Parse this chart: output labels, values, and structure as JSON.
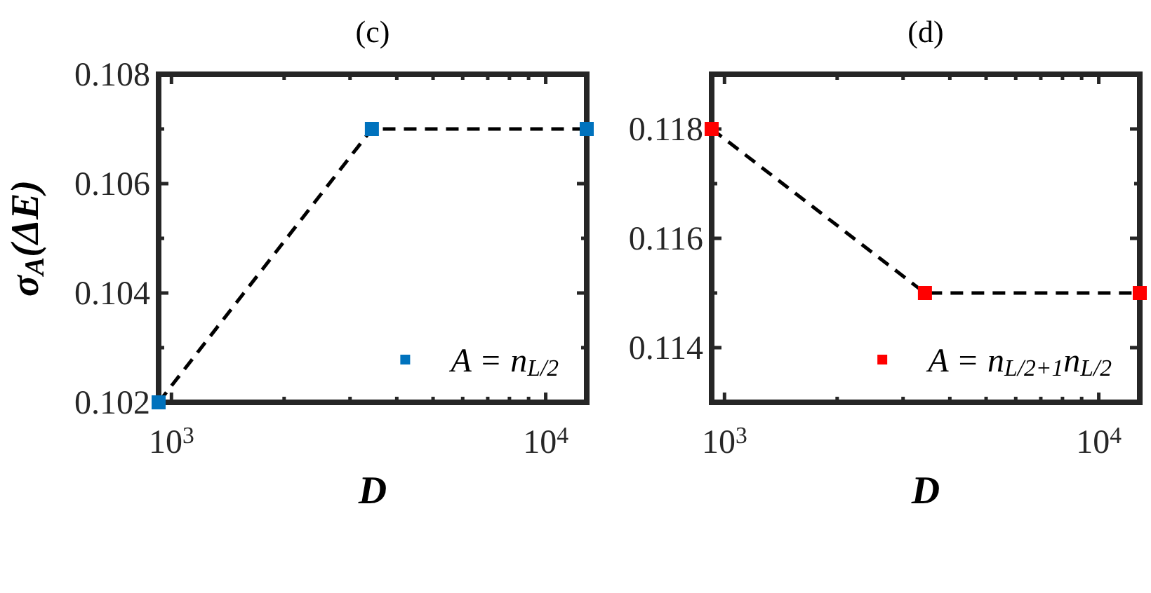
{
  "chart_data": [
    {
      "type": "line",
      "title": "(c)",
      "xlabel": "D",
      "ylabel": "σ$_{A}$(ΔE)",
      "log": "x",
      "legend": "bottom right",
      "x": [
        924,
        3432,
        12870
      ],
      "xlim": [
        924,
        12870
      ],
      "ylim": [
        0.102,
        0.108
      ],
      "xticks": [
        {
          "value": 1000,
          "label": "10$^{3}$"
        },
        {
          "value": 2000,
          "label": null
        },
        {
          "value": 3000,
          "label": null
        },
        {
          "value": 4000,
          "label": null
        },
        {
          "value": 5000,
          "label": null
        },
        {
          "value": 6000,
          "label": null
        },
        {
          "value": 7000,
          "label": null
        },
        {
          "value": 8000,
          "label": null
        },
        {
          "value": 9000,
          "label": null
        },
        {
          "value": 10000,
          "label": "10$^{4}$"
        }
      ],
      "yticks": [
        0.102,
        {
          "value": 0.103,
          "label": null
        },
        0.104,
        {
          "value": 0.105,
          "label": null
        },
        0.106,
        {
          "value": 0.107,
          "label": null
        },
        0.108
      ],
      "series": [
        {
          "type": "line",
          "color": "#000000",
          "line_style": "dashed",
          "marker": "none",
          "values": [
            0.102,
            0.107,
            0.107
          ]
        },
        {
          "type": "scatter",
          "name": "A = n$_{L/2}$",
          "color": "#0072bd",
          "marker": "square",
          "values": [
            0.102,
            0.107,
            0.107
          ]
        }
      ]
    },
    {
      "type": "line",
      "title": "(d)",
      "xlabel": "D",
      "log": "x",
      "legend": "bottom right",
      "x": [
        924,
        3432,
        12870
      ],
      "xlim": [
        924,
        12870
      ],
      "ylim": [
        0.113,
        0.119
      ],
      "xticks": [
        {
          "value": 1000,
          "label": "10$^{3}$"
        },
        {
          "value": 2000,
          "label": null
        },
        {
          "value": 3000,
          "label": null
        },
        {
          "value": 4000,
          "label": null
        },
        {
          "value": 5000,
          "label": null
        },
        {
          "value": 6000,
          "label": null
        },
        {
          "value": 7000,
          "label": null
        },
        {
          "value": 8000,
          "label": null
        },
        {
          "value": 9000,
          "label": null
        },
        {
          "value": 10000,
          "label": "10$^{4}$"
        }
      ],
      "yticks": [
        {
          "value": 0.113,
          "label": null
        },
        0.114,
        {
          "value": 0.115,
          "label": null
        },
        0.116,
        {
          "value": 0.117,
          "label": null
        },
        0.118,
        {
          "value": 0.119,
          "label": null
        }
      ],
      "series": [
        {
          "type": "line",
          "color": "#000000",
          "line_style": "dashed",
          "marker": "none",
          "values": [
            0.118,
            0.115,
            0.115
          ]
        },
        {
          "type": "scatter",
          "name": "A = n$_{L/2+1}$n$_{L/2}$",
          "color": "#ff0000",
          "marker": "square",
          "values": [
            0.118,
            0.115,
            0.115
          ]
        }
      ]
    }
  ]
}
